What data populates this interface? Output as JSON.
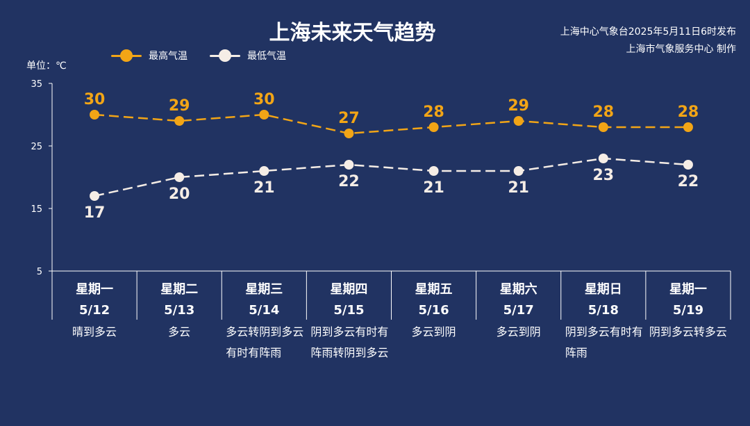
{
  "title": "上海未来天气趋势",
  "source": {
    "line1": "上海中心气象台2025年5月11日6时发布",
    "line2": "上海市气象服务中心 制作"
  },
  "unit_label": "单位：℃",
  "legend": {
    "max_label": "最高气温",
    "min_label": "最低气温"
  },
  "colors": {
    "background": "#213362",
    "max_series": "#f2a516",
    "min_series": "#f5ede6",
    "axis": "#ffffff"
  },
  "chart_data": {
    "type": "line",
    "title": "上海未来天气趋势",
    "ylabel": "单位：℃",
    "ylim": [
      5,
      35
    ],
    "yticks": [
      5,
      15,
      25,
      35
    ],
    "grid": false,
    "legend_position": "top-left",
    "categories": [
      {
        "day": "星期一",
        "date": "5/12",
        "weather": "晴到多云"
      },
      {
        "day": "星期二",
        "date": "5/13",
        "weather": "多云"
      },
      {
        "day": "星期三",
        "date": "5/14",
        "weather": "多云转阴到多云有时有阵雨"
      },
      {
        "day": "星期四",
        "date": "5/15",
        "weather": "阴到多云有时有阵雨转阴到多云"
      },
      {
        "day": "星期五",
        "date": "5/16",
        "weather": "多云到阴"
      },
      {
        "day": "星期六",
        "date": "5/17",
        "weather": "多云到阴"
      },
      {
        "day": "星期日",
        "date": "5/18",
        "weather": "阴到多云有时有阵雨"
      },
      {
        "day": "星期一",
        "date": "5/19",
        "weather": "阴到多云转多云"
      }
    ],
    "series": [
      {
        "name": "最高气温",
        "values": [
          30,
          29,
          30,
          27,
          28,
          29,
          28,
          28
        ]
      },
      {
        "name": "最低气温",
        "values": [
          17,
          20,
          21,
          22,
          21,
          21,
          23,
          22
        ]
      }
    ]
  }
}
